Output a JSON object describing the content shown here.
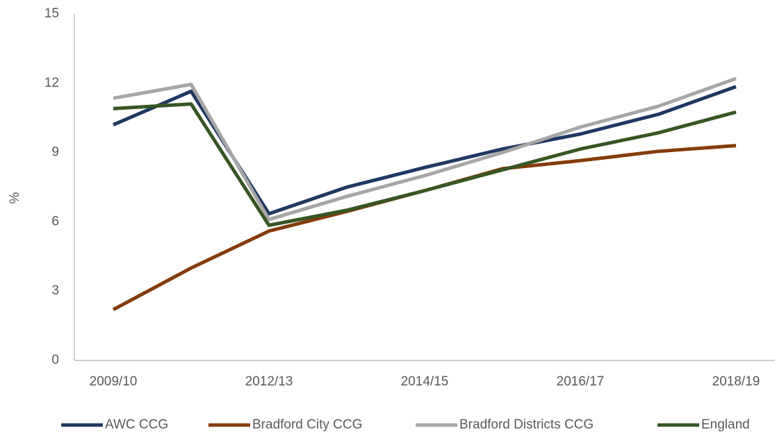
{
  "chart_data": {
    "type": "line",
    "ylabel": "%",
    "categories": [
      "2009/10",
      null,
      "2012/13",
      null,
      "2014/15",
      null,
      "2016/17",
      null,
      "2018/19"
    ],
    "series": [
      {
        "name": "AWC CCG",
        "color": "#1f3864",
        "values": [
          10.2,
          11.65,
          6.35,
          7.5,
          8.35,
          9.15,
          9.8,
          10.65,
          11.85
        ]
      },
      {
        "name": "Bradford City CCG",
        "color": "#843c0c",
        "values": [
          2.2,
          4.0,
          5.6,
          6.45,
          7.35,
          8.3,
          8.65,
          9.05,
          9.3
        ]
      },
      {
        "name": "Bradford Districts CCG",
        "color": "#a6a6a6",
        "values": [
          11.35,
          11.95,
          6.1,
          7.1,
          8.0,
          9.0,
          10.1,
          11.0,
          12.2
        ]
      },
      {
        "name": "England",
        "color": "#375623",
        "values": [
          10.9,
          11.1,
          5.85,
          6.5,
          7.35,
          8.25,
          9.15,
          9.85,
          10.75
        ]
      }
    ],
    "ylim": [
      0,
      15
    ],
    "yticks": [
      0,
      3,
      6,
      9,
      12,
      15
    ],
    "grid": false,
    "legend": "bottom"
  }
}
